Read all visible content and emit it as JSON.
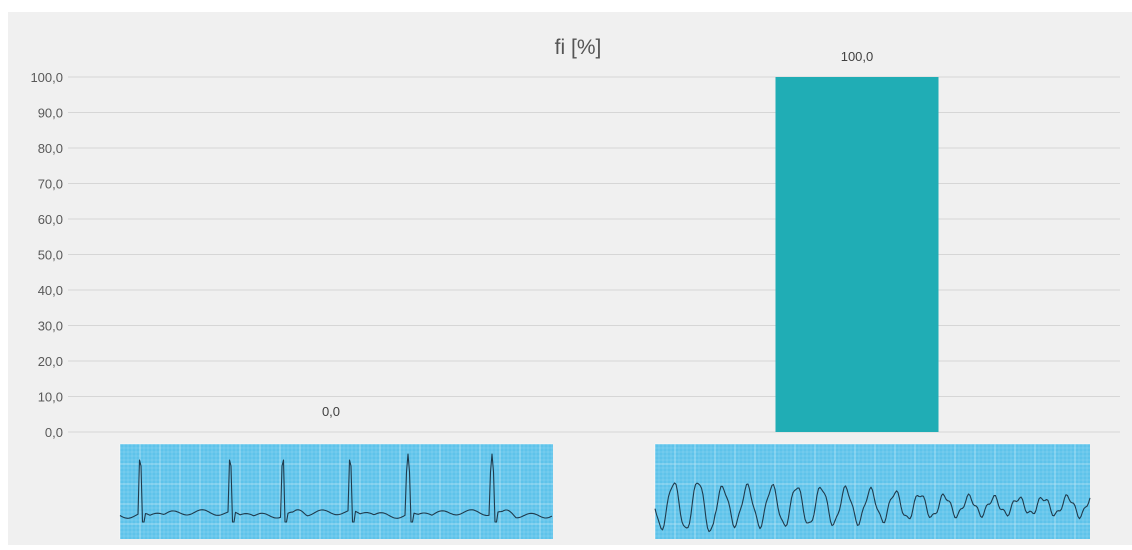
{
  "chart_data": {
    "type": "bar",
    "title": "fi [%]",
    "categories": [
      "",
      ""
    ],
    "category_images": [
      "ecg-sinus-rhythm-strip",
      "ecg-ventricular-fibrillation-strip"
    ],
    "values": [
      0.0,
      100.0
    ],
    "data_labels": [
      "0,0",
      "100,0"
    ],
    "yticks": [
      "0,0",
      "10,0",
      "20,0",
      "30,0",
      "40,0",
      "50,0",
      "60,0",
      "70,0",
      "80,0",
      "90,0",
      "100,0"
    ],
    "ylim": [
      0,
      100
    ],
    "xlabel": "",
    "ylabel": "",
    "grid": true,
    "legend": "none",
    "colors": {
      "bar": "#20adb5",
      "background": "#f0f0f0",
      "gridline": "#d6d6d6",
      "ecg_paper": "#5ec3ea",
      "ecg_trace": "#1f3b4d"
    }
  }
}
